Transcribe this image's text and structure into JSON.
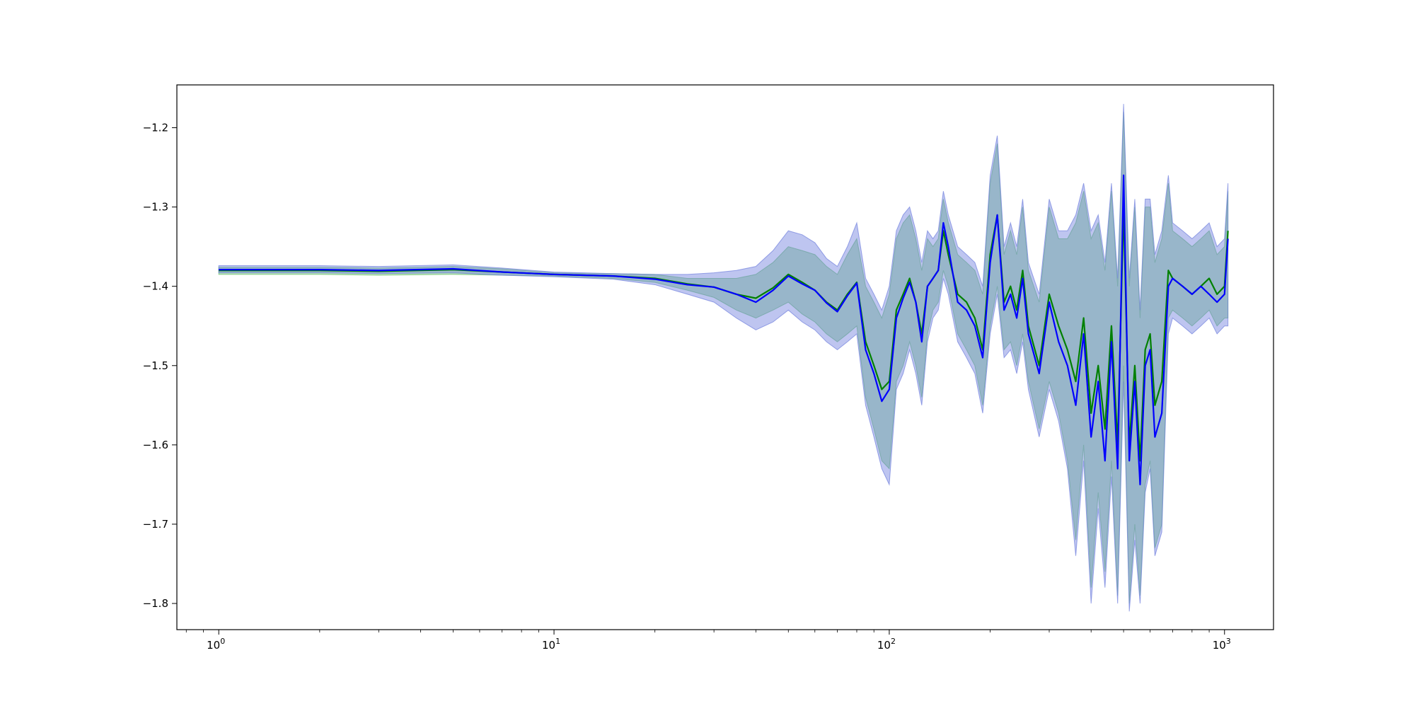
{
  "chart_data": {
    "type": "line",
    "title": "",
    "xlabel": "",
    "ylabel": "",
    "xscale": "log",
    "xlim": [
      0.75,
      1400
    ],
    "ylim": [
      -1.833,
      -1.146
    ],
    "grid": false,
    "legend": "none",
    "x_ticks": [
      {
        "value": 1,
        "base": "10",
        "exp": "0"
      },
      {
        "value": 10,
        "base": "10",
        "exp": "1"
      },
      {
        "value": 100,
        "base": "10",
        "exp": "2"
      },
      {
        "value": 1000,
        "base": "10",
        "exp": "3"
      }
    ],
    "y_ticks": [
      {
        "value": -1.2,
        "label": "−1.2"
      },
      {
        "value": -1.3,
        "label": "−1.3"
      },
      {
        "value": -1.4,
        "label": "−1.4"
      },
      {
        "value": -1.5,
        "label": "−1.5"
      },
      {
        "value": -1.6,
        "label": "−1.6"
      },
      {
        "value": -1.7,
        "label": "−1.7"
      },
      {
        "value": -1.8,
        "label": "−1.8"
      }
    ],
    "series": [
      {
        "color": "#008000",
        "band_color": "#66c266",
        "x": [
          1,
          2,
          3,
          5,
          7,
          10,
          15,
          20,
          25,
          30,
          35,
          40,
          45,
          50,
          55,
          60,
          65,
          70,
          75,
          80,
          85,
          90,
          95,
          100,
          105,
          110,
          115,
          120,
          125,
          130,
          135,
          140,
          145,
          150,
          160,
          170,
          180,
          190,
          200,
          210,
          220,
          230,
          240,
          250,
          260,
          280,
          300,
          320,
          340,
          360,
          380,
          400,
          420,
          440,
          460,
          480,
          500,
          520,
          540,
          560,
          580,
          600,
          620,
          650,
          680,
          700,
          750,
          800,
          850,
          900,
          950,
          1000,
          1024
        ],
        "y": [
          -1.38,
          -1.38,
          -1.381,
          -1.379,
          -1.382,
          -1.385,
          -1.387,
          -1.39,
          -1.397,
          -1.401,
          -1.41,
          -1.415,
          -1.402,
          -1.385,
          -1.395,
          -1.405,
          -1.42,
          -1.43,
          -1.41,
          -1.395,
          -1.47,
          -1.5,
          -1.53,
          -1.52,
          -1.43,
          -1.41,
          -1.39,
          -1.42,
          -1.46,
          -1.4,
          -1.39,
          -1.38,
          -1.33,
          -1.36,
          -1.41,
          -1.42,
          -1.44,
          -1.48,
          -1.36,
          -1.31,
          -1.42,
          -1.4,
          -1.43,
          -1.38,
          -1.45,
          -1.5,
          -1.41,
          -1.45,
          -1.48,
          -1.52,
          -1.44,
          -1.56,
          -1.5,
          -1.58,
          -1.45,
          -1.6,
          -1.3,
          -1.6,
          -1.5,
          -1.62,
          -1.48,
          -1.46,
          -1.55,
          -1.52,
          -1.38,
          -1.39,
          -1.4,
          -1.41,
          -1.4,
          -1.39,
          -1.41,
          -1.4,
          -1.33
        ],
        "lower": [
          -1.385,
          -1.385,
          -1.386,
          -1.385,
          -1.386,
          -1.387,
          -1.39,
          -1.395,
          -1.405,
          -1.414,
          -1.43,
          -1.44,
          -1.43,
          -1.42,
          -1.435,
          -1.445,
          -1.46,
          -1.47,
          -1.46,
          -1.45,
          -1.54,
          -1.58,
          -1.62,
          -1.63,
          -1.52,
          -1.5,
          -1.47,
          -1.5,
          -1.54,
          -1.46,
          -1.43,
          -1.42,
          -1.38,
          -1.4,
          -1.46,
          -1.48,
          -1.5,
          -1.55,
          -1.45,
          -1.4,
          -1.48,
          -1.47,
          -1.5,
          -1.46,
          -1.52,
          -1.58,
          -1.52,
          -1.56,
          -1.62,
          -1.72,
          -1.6,
          -1.78,
          -1.66,
          -1.76,
          -1.62,
          -1.79,
          -1.5,
          -1.8,
          -1.7,
          -1.79,
          -1.65,
          -1.62,
          -1.73,
          -1.7,
          -1.44,
          -1.43,
          -1.44,
          -1.45,
          -1.44,
          -1.43,
          -1.45,
          -1.44,
          -1.44
        ],
        "upper": [
          -1.376,
          -1.376,
          -1.377,
          -1.375,
          -1.378,
          -1.383,
          -1.384,
          -1.385,
          -1.39,
          -1.39,
          -1.39,
          -1.385,
          -1.37,
          -1.35,
          -1.355,
          -1.36,
          -1.375,
          -1.385,
          -1.36,
          -1.34,
          -1.4,
          -1.42,
          -1.44,
          -1.41,
          -1.34,
          -1.32,
          -1.31,
          -1.34,
          -1.38,
          -1.34,
          -1.35,
          -1.34,
          -1.29,
          -1.32,
          -1.36,
          -1.37,
          -1.38,
          -1.41,
          -1.27,
          -1.22,
          -1.36,
          -1.33,
          -1.36,
          -1.3,
          -1.38,
          -1.42,
          -1.3,
          -1.34,
          -1.34,
          -1.32,
          -1.28,
          -1.34,
          -1.32,
          -1.38,
          -1.28,
          -1.4,
          -1.18,
          -1.4,
          -1.3,
          -1.44,
          -1.3,
          -1.3,
          -1.37,
          -1.34,
          -1.27,
          -1.33,
          -1.34,
          -1.35,
          -1.34,
          -1.33,
          -1.36,
          -1.35,
          -1.28
        ]
      },
      {
        "color": "#0000ff",
        "band_color": "#6f7fdd",
        "x": [
          1,
          2,
          3,
          5,
          7,
          10,
          15,
          20,
          25,
          30,
          35,
          40,
          45,
          50,
          55,
          60,
          65,
          70,
          75,
          80,
          85,
          90,
          95,
          100,
          105,
          110,
          115,
          120,
          125,
          130,
          135,
          140,
          145,
          150,
          160,
          170,
          180,
          190,
          200,
          210,
          220,
          230,
          240,
          250,
          260,
          280,
          300,
          320,
          340,
          360,
          380,
          400,
          420,
          440,
          460,
          480,
          500,
          520,
          540,
          560,
          580,
          600,
          620,
          650,
          680,
          700,
          750,
          800,
          850,
          900,
          950,
          1000,
          1024
        ],
        "y": [
          -1.379,
          -1.379,
          -1.38,
          -1.378,
          -1.382,
          -1.385,
          -1.387,
          -1.391,
          -1.398,
          -1.401,
          -1.41,
          -1.42,
          -1.405,
          -1.387,
          -1.397,
          -1.405,
          -1.421,
          -1.432,
          -1.412,
          -1.396,
          -1.48,
          -1.51,
          -1.545,
          -1.53,
          -1.44,
          -1.415,
          -1.395,
          -1.42,
          -1.47,
          -1.4,
          -1.39,
          -1.38,
          -1.32,
          -1.35,
          -1.42,
          -1.43,
          -1.45,
          -1.49,
          -1.37,
          -1.31,
          -1.43,
          -1.41,
          -1.44,
          -1.39,
          -1.46,
          -1.51,
          -1.42,
          -1.47,
          -1.5,
          -1.55,
          -1.46,
          -1.59,
          -1.52,
          -1.62,
          -1.47,
          -1.63,
          -1.26,
          -1.62,
          -1.52,
          -1.65,
          -1.5,
          -1.48,
          -1.59,
          -1.56,
          -1.4,
          -1.39,
          -1.4,
          -1.41,
          -1.4,
          -1.41,
          -1.42,
          -1.41,
          -1.34
        ],
        "lower": [
          -1.383,
          -1.383,
          -1.384,
          -1.383,
          -1.386,
          -1.388,
          -1.391,
          -1.398,
          -1.41,
          -1.42,
          -1.44,
          -1.455,
          -1.445,
          -1.43,
          -1.445,
          -1.455,
          -1.47,
          -1.48,
          -1.47,
          -1.46,
          -1.55,
          -1.59,
          -1.63,
          -1.65,
          -1.53,
          -1.51,
          -1.48,
          -1.51,
          -1.55,
          -1.47,
          -1.44,
          -1.43,
          -1.39,
          -1.41,
          -1.47,
          -1.49,
          -1.51,
          -1.56,
          -1.46,
          -1.41,
          -1.49,
          -1.48,
          -1.51,
          -1.47,
          -1.53,
          -1.59,
          -1.53,
          -1.57,
          -1.63,
          -1.74,
          -1.62,
          -1.8,
          -1.68,
          -1.78,
          -1.64,
          -1.8,
          -1.52,
          -1.81,
          -1.72,
          -1.8,
          -1.66,
          -1.63,
          -1.74,
          -1.71,
          -1.46,
          -1.44,
          -1.45,
          -1.46,
          -1.45,
          -1.44,
          -1.46,
          -1.45,
          -1.45
        ],
        "upper": [
          -1.374,
          -1.374,
          -1.375,
          -1.373,
          -1.377,
          -1.382,
          -1.384,
          -1.385,
          -1.385,
          -1.383,
          -1.38,
          -1.375,
          -1.355,
          -1.33,
          -1.335,
          -1.345,
          -1.365,
          -1.375,
          -1.35,
          -1.32,
          -1.39,
          -1.41,
          -1.43,
          -1.4,
          -1.33,
          -1.31,
          -1.3,
          -1.33,
          -1.37,
          -1.33,
          -1.34,
          -1.33,
          -1.28,
          -1.31,
          -1.35,
          -1.36,
          -1.37,
          -1.4,
          -1.26,
          -1.21,
          -1.35,
          -1.32,
          -1.35,
          -1.29,
          -1.37,
          -1.41,
          -1.29,
          -1.33,
          -1.33,
          -1.31,
          -1.27,
          -1.33,
          -1.31,
          -1.37,
          -1.27,
          -1.39,
          -1.17,
          -1.39,
          -1.29,
          -1.43,
          -1.29,
          -1.29,
          -1.36,
          -1.33,
          -1.26,
          -1.32,
          -1.33,
          -1.34,
          -1.33,
          -1.32,
          -1.35,
          -1.34,
          -1.27
        ]
      }
    ]
  }
}
